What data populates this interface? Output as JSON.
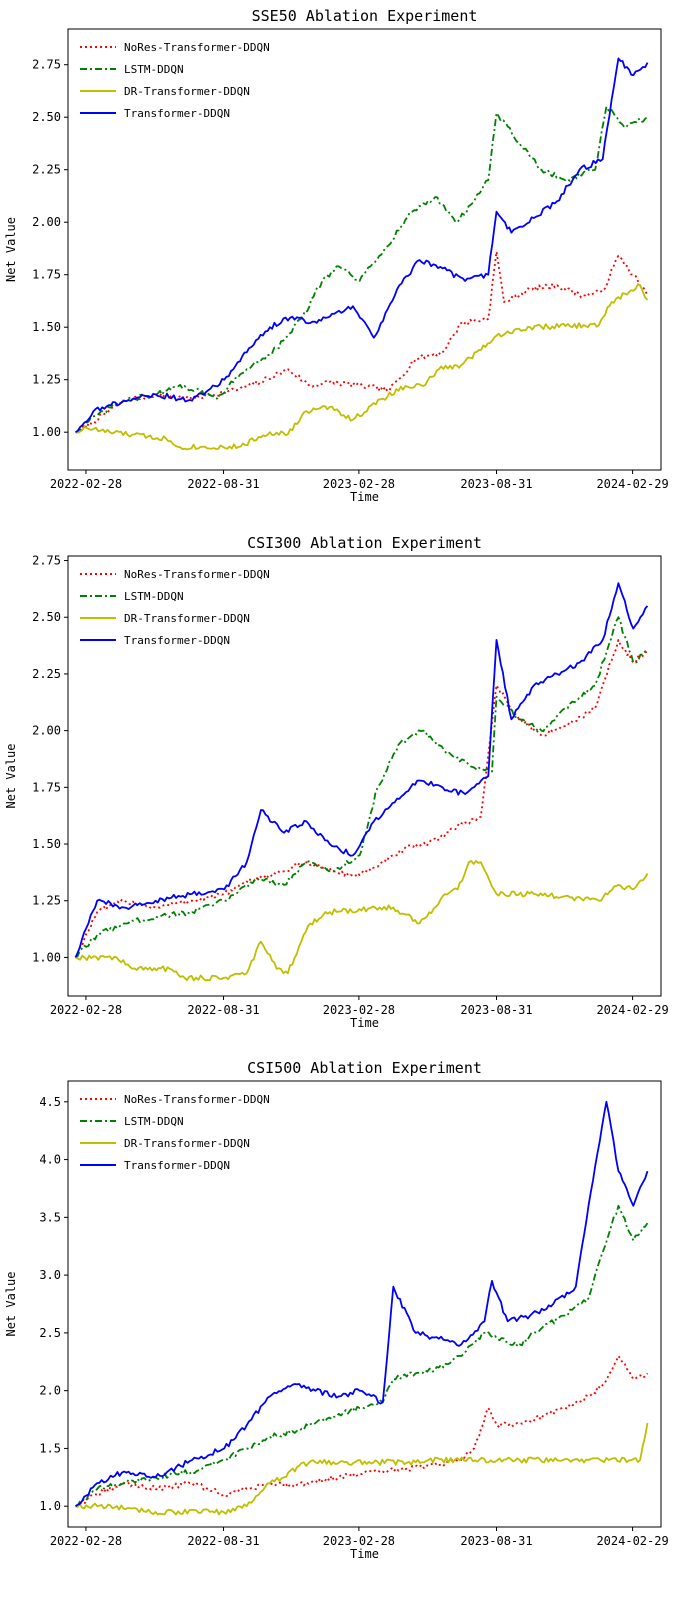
{
  "chart_data": [
    {
      "type": "line",
      "title": "SSE50 Ablation Experiment",
      "xlabel": "Time",
      "ylabel": "Net Value",
      "x_ticks": [
        "2022-02-28",
        "2022-08-31",
        "2023-02-28",
        "2023-08-31",
        "2024-02-29"
      ],
      "y_ticks": [
        "1.00",
        "1.25",
        "1.50",
        "1.75",
        "2.00",
        "2.25",
        "2.50",
        "2.75"
      ],
      "xlim": [
        "2022-02-04",
        "2024-04-07"
      ],
      "ylim": [
        0.82,
        2.92
      ],
      "grid": false,
      "legend_position": "top-left",
      "series": [
        {
          "name": "NoRes-Transformer-DDQN",
          "color": "#ff0000",
          "style": "dotted",
          "x": [
            "2022-02-14",
            "2022-03-10",
            "2022-04-20",
            "2022-06-01",
            "2022-07-20",
            "2022-09-15",
            "2022-10-20",
            "2022-11-25",
            "2022-12-25",
            "2023-01-20",
            "2023-03-05",
            "2023-04-10",
            "2023-05-15",
            "2023-06-20",
            "2023-07-15",
            "2023-08-20",
            "2023-08-31",
            "2023-09-10",
            "2023-10-15",
            "2023-11-20",
            "2023-12-25",
            "2024-01-20",
            "2024-02-10",
            "2024-03-01",
            "2024-03-20"
          ],
          "y": [
            1.0,
            1.05,
            1.15,
            1.18,
            1.16,
            1.2,
            1.24,
            1.3,
            1.22,
            1.24,
            1.22,
            1.2,
            1.35,
            1.38,
            1.52,
            1.54,
            1.86,
            1.62,
            1.68,
            1.7,
            1.65,
            1.67,
            1.84,
            1.75,
            1.65
          ]
        },
        {
          "name": "LSTM-DDQN",
          "color": "#008000",
          "style": "dashdot",
          "x": [
            "2022-02-14",
            "2022-03-15",
            "2022-04-20",
            "2022-06-01",
            "2022-07-10",
            "2022-08-20",
            "2022-10-01",
            "2022-11-10",
            "2022-12-15",
            "2023-01-10",
            "2023-02-01",
            "2023-03-01",
            "2023-04-05",
            "2023-05-10",
            "2023-06-10",
            "2023-07-10",
            "2023-08-20",
            "2023-08-31",
            "2023-09-30",
            "2023-10-30",
            "2023-12-01",
            "2024-01-10",
            "2024-01-25",
            "2024-02-20",
            "2024-03-20"
          ],
          "y": [
            1.0,
            1.08,
            1.15,
            1.18,
            1.22,
            1.16,
            1.3,
            1.4,
            1.55,
            1.72,
            1.79,
            1.72,
            1.88,
            2.05,
            2.12,
            2.0,
            2.2,
            2.52,
            2.38,
            2.25,
            2.2,
            2.25,
            2.55,
            2.45,
            2.5
          ]
        },
        {
          "name": "DR-Transformer-DDQN",
          "color": "#bfbf00",
          "style": "solid",
          "x": [
            "2022-02-14",
            "2022-03-01",
            "2022-04-01",
            "2022-06-15",
            "2022-07-01",
            "2022-09-20",
            "2022-11-01",
            "2022-11-25",
            "2022-12-20",
            "2023-01-20",
            "2023-02-20",
            "2023-04-01",
            "2023-05-01",
            "2023-05-25",
            "2023-06-15",
            "2023-07-15",
            "2023-08-31",
            "2023-10-15",
            "2024-01-15",
            "2024-02-01",
            "2024-03-10",
            "2024-03-20"
          ],
          "y": [
            1.0,
            1.02,
            1.0,
            0.97,
            0.93,
            0.93,
            1.0,
            0.99,
            1.1,
            1.12,
            1.06,
            1.16,
            1.22,
            1.22,
            1.3,
            1.32,
            1.46,
            1.5,
            1.51,
            1.62,
            1.7,
            1.63
          ]
        },
        {
          "name": "Transformer-DDQN",
          "color": "#0000ff",
          "style": "solid",
          "x": [
            "2022-02-14",
            "2022-03-10",
            "2022-04-20",
            "2022-06-01",
            "2022-07-20",
            "2022-09-01",
            "2022-10-01",
            "2022-11-01",
            "2022-12-01",
            "2022-12-25",
            "2023-01-20",
            "2023-02-20",
            "2023-03-20",
            "2023-04-20",
            "2023-05-20",
            "2023-06-20",
            "2023-07-20",
            "2023-08-20",
            "2023-08-31",
            "2023-09-20",
            "2023-10-20",
            "2023-11-20",
            "2023-12-20",
            "2024-01-20",
            "2024-02-10",
            "2024-03-01",
            "2024-03-20"
          ],
          "y": [
            1.0,
            1.1,
            1.15,
            1.18,
            1.15,
            1.25,
            1.38,
            1.5,
            1.55,
            1.52,
            1.55,
            1.6,
            1.45,
            1.68,
            1.82,
            1.78,
            1.72,
            1.75,
            2.05,
            1.95,
            2.02,
            2.1,
            2.25,
            2.3,
            2.78,
            2.7,
            2.76
          ]
        }
      ]
    },
    {
      "type": "line",
      "title": "CSI300 Ablation Experiment",
      "xlabel": "Time",
      "ylabel": "Net Value",
      "x_ticks": [
        "2022-02-28",
        "2022-08-31",
        "2023-02-28",
        "2023-08-31",
        "2024-02-29"
      ],
      "y_ticks": [
        "1.00",
        "1.25",
        "1.50",
        "1.75",
        "2.00",
        "2.25",
        "2.50",
        "2.75"
      ],
      "xlim": [
        "2022-02-04",
        "2024-04-07"
      ],
      "ylim": [
        0.83,
        2.77
      ],
      "grid": false,
      "legend_position": "top-left",
      "series": [
        {
          "name": "NoRes-Transformer-DDQN",
          "color": "#ff0000",
          "style": "dotted",
          "x": [
            "2022-02-14",
            "2022-03-15",
            "2022-04-20",
            "2022-06-01",
            "2022-07-20",
            "2022-09-01",
            "2022-10-15",
            "2022-11-20",
            "2022-12-20",
            "2023-01-25",
            "2023-02-20",
            "2023-03-25",
            "2023-04-30",
            "2023-06-01",
            "2023-07-10",
            "2023-08-10",
            "2023-08-31",
            "2023-09-30",
            "2023-10-30",
            "2023-12-01",
            "2024-01-10",
            "2024-02-10",
            "2024-03-01",
            "2024-03-20"
          ],
          "y": [
            1.0,
            1.2,
            1.25,
            1.22,
            1.25,
            1.28,
            1.35,
            1.38,
            1.42,
            1.38,
            1.36,
            1.4,
            1.48,
            1.5,
            1.58,
            1.62,
            2.2,
            2.05,
            1.98,
            2.02,
            2.1,
            2.4,
            2.3,
            2.35
          ]
        },
        {
          "name": "LSTM-DDQN",
          "color": "#008000",
          "style": "dashdot",
          "x": [
            "2022-02-14",
            "2022-03-15",
            "2022-04-20",
            "2022-06-01",
            "2022-07-20",
            "2022-09-01",
            "2022-10-15",
            "2022-11-20",
            "2022-12-20",
            "2023-01-25",
            "2023-03-01",
            "2023-03-25",
            "2023-04-25",
            "2023-05-25",
            "2023-06-25",
            "2023-07-25",
            "2023-08-25",
            "2023-08-31",
            "2023-09-30",
            "2023-10-30",
            "2023-12-01",
            "2024-01-10",
            "2024-02-10",
            "2024-03-01",
            "2024-03-20"
          ],
          "y": [
            1.0,
            1.1,
            1.15,
            1.18,
            1.2,
            1.25,
            1.35,
            1.32,
            1.42,
            1.38,
            1.45,
            1.75,
            1.95,
            2.0,
            1.9,
            1.85,
            1.82,
            2.15,
            2.05,
            2.0,
            2.1,
            2.2,
            2.5,
            2.3,
            2.35
          ]
        },
        {
          "name": "DR-Transformer-DDQN",
          "color": "#bfbf00",
          "style": "solid",
          "x": [
            "2022-02-14",
            "2022-04-10",
            "2022-05-01",
            "2022-06-20",
            "2022-07-10",
            "2022-08-31",
            "2022-10-01",
            "2022-10-20",
            "2022-11-10",
            "2022-11-25",
            "2022-12-10",
            "2022-12-25",
            "2023-01-20",
            "2023-04-15",
            "2023-05-20",
            "2023-05-30",
            "2023-06-20",
            "2023-07-10",
            "2023-07-25",
            "2023-08-10",
            "2023-08-31",
            "2023-10-20",
            "2024-01-15",
            "2024-02-10",
            "2024-03-01",
            "2024-03-20"
          ],
          "y": [
            1.0,
            1.0,
            0.95,
            0.95,
            0.91,
            0.91,
            0.93,
            1.07,
            0.95,
            0.93,
            1.05,
            1.15,
            1.2,
            1.22,
            1.15,
            1.18,
            1.27,
            1.3,
            1.42,
            1.42,
            1.28,
            1.28,
            1.25,
            1.32,
            1.3,
            1.37
          ]
        },
        {
          "name": "Transformer-DDQN",
          "color": "#0000ff",
          "style": "solid",
          "x": [
            "2022-02-14",
            "2022-03-15",
            "2022-04-20",
            "2022-06-01",
            "2022-07-20",
            "2022-09-01",
            "2022-10-01",
            "2022-10-20",
            "2022-11-20",
            "2022-12-20",
            "2023-01-20",
            "2023-02-20",
            "2023-03-20",
            "2023-04-20",
            "2023-05-20",
            "2023-06-20",
            "2023-07-20",
            "2023-08-20",
            "2023-08-31",
            "2023-09-20",
            "2023-10-20",
            "2023-11-20",
            "2023-12-20",
            "2024-01-20",
            "2024-02-10",
            "2024-03-01",
            "2024-03-20"
          ],
          "y": [
            1.0,
            1.25,
            1.22,
            1.25,
            1.28,
            1.3,
            1.42,
            1.65,
            1.55,
            1.6,
            1.5,
            1.45,
            1.6,
            1.7,
            1.78,
            1.75,
            1.72,
            1.8,
            2.4,
            2.05,
            2.2,
            2.25,
            2.3,
            2.4,
            2.65,
            2.45,
            2.55
          ]
        }
      ]
    },
    {
      "type": "line",
      "title": "CSI500 Ablation Experiment",
      "xlabel": "Time",
      "ylabel": "Net Value",
      "x_ticks": [
        "2022-02-28",
        "2022-08-31",
        "2023-02-28",
        "2023-08-31",
        "2024-02-29"
      ],
      "y_ticks": [
        "1.0",
        "1.5",
        "2.0",
        "2.5",
        "3.0",
        "3.5",
        "4.0",
        "4.5"
      ],
      "xlim": [
        "2022-02-04",
        "2024-04-07"
      ],
      "ylim": [
        0.82,
        4.68
      ],
      "grid": false,
      "legend_position": "top-left",
      "series": [
        {
          "name": "NoRes-Transformer-DDQN",
          "color": "#ff0000",
          "style": "dotted",
          "x": [
            "2022-02-14",
            "2022-03-15",
            "2022-04-20",
            "2022-06-01",
            "2022-07-20",
            "2022-09-01",
            "2022-10-01",
            "2022-11-01",
            "2022-12-01",
            "2023-01-01",
            "2023-02-01",
            "2023-03-01",
            "2023-04-01",
            "2023-05-01",
            "2023-06-01",
            "2023-07-15",
            "2023-08-01",
            "2023-08-20",
            "2023-09-01",
            "2023-10-01",
            "2023-11-01",
            "2023-12-01",
            "2024-01-01",
            "2024-01-20",
            "2024-02-10",
            "2024-03-01",
            "2024-03-20"
          ],
          "y": [
            1.0,
            1.1,
            1.2,
            1.15,
            1.2,
            1.1,
            1.15,
            1.2,
            1.18,
            1.22,
            1.25,
            1.28,
            1.3,
            1.32,
            1.35,
            1.4,
            1.5,
            1.85,
            1.7,
            1.72,
            1.78,
            1.85,
            1.95,
            2.05,
            2.3,
            2.1,
            2.15
          ]
        },
        {
          "name": "LSTM-DDQN",
          "color": "#008000",
          "style": "dashdot",
          "x": [
            "2022-02-14",
            "2022-03-15",
            "2022-04-20",
            "2022-06-01",
            "2022-07-20",
            "2022-09-01",
            "2022-10-01",
            "2022-11-01",
            "2022-12-01",
            "2023-01-01",
            "2023-02-01",
            "2023-03-01",
            "2023-04-01",
            "2023-04-15",
            "2023-05-15",
            "2023-06-15",
            "2023-07-15",
            "2023-08-15",
            "2023-09-01",
            "2023-10-01",
            "2023-11-01",
            "2023-12-01",
            "2024-01-01",
            "2024-01-20",
            "2024-02-10",
            "2024-03-01",
            "2024-03-20"
          ],
          "y": [
            1.0,
            1.15,
            1.2,
            1.25,
            1.3,
            1.4,
            1.5,
            1.6,
            1.65,
            1.72,
            1.8,
            1.85,
            1.9,
            2.1,
            2.15,
            2.2,
            2.3,
            2.5,
            2.45,
            2.4,
            2.55,
            2.65,
            2.8,
            3.2,
            3.6,
            3.3,
            3.45
          ]
        },
        {
          "name": "DR-Transformer-DDQN",
          "color": "#bfbf00",
          "style": "solid",
          "x": [
            "2022-02-14",
            "2022-03-15",
            "2022-05-01",
            "2022-06-01",
            "2022-08-31",
            "2022-10-01",
            "2022-11-01",
            "2022-11-20",
            "2022-12-10",
            "2023-01-01",
            "2023-05-15",
            "2023-06-01",
            "2023-10-01",
            "2024-01-01",
            "2024-03-10",
            "2024-03-20"
          ],
          "y": [
            1.0,
            1.0,
            0.98,
            0.95,
            0.95,
            1.0,
            1.2,
            1.25,
            1.35,
            1.38,
            1.38,
            1.4,
            1.4,
            1.4,
            1.4,
            1.72
          ]
        },
        {
          "name": "Transformer-DDQN",
          "color": "#0000ff",
          "style": "solid",
          "x": [
            "2022-02-14",
            "2022-03-15",
            "2022-04-20",
            "2022-06-01",
            "2022-07-20",
            "2022-09-01",
            "2022-10-01",
            "2022-11-01",
            "2022-12-01",
            "2023-01-01",
            "2023-02-01",
            "2023-03-01",
            "2023-04-01",
            "2023-04-15",
            "2023-05-15",
            "2023-06-15",
            "2023-07-15",
            "2023-08-15",
            "2023-08-25",
            "2023-09-15",
            "2023-10-15",
            "2023-11-15",
            "2023-12-15",
            "2024-01-01",
            "2024-01-25",
            "2024-02-10",
            "2024-03-01",
            "2024-03-20"
          ],
          "y": [
            1.0,
            1.2,
            1.3,
            1.25,
            1.4,
            1.5,
            1.7,
            1.95,
            2.05,
            2.0,
            1.95,
            2.0,
            1.9,
            2.9,
            2.5,
            2.45,
            2.4,
            2.6,
            2.95,
            2.6,
            2.65,
            2.75,
            2.9,
            3.6,
            4.5,
            3.9,
            3.6,
            3.9
          ]
        }
      ]
    }
  ]
}
